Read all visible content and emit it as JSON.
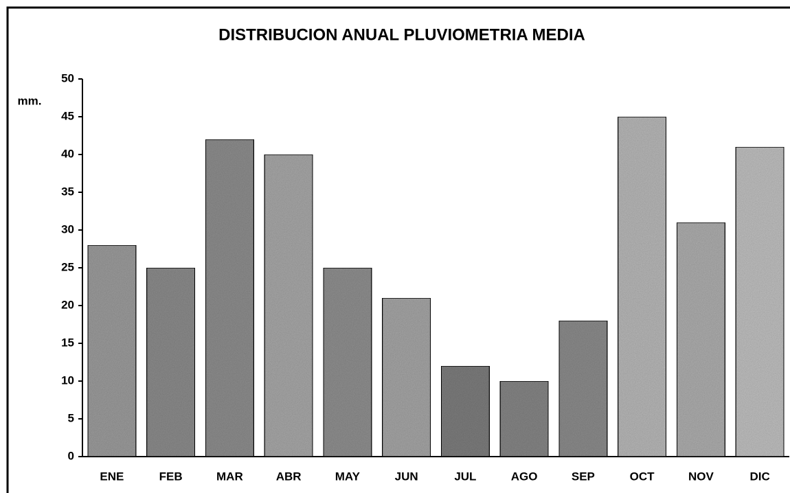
{
  "chart_data": {
    "type": "bar",
    "title": "DISTRIBUCION ANUAL PLUVIOMETRIA MEDIA",
    "y_label": "mm.",
    "categories": [
      "ENE",
      "FEB",
      "MAR",
      "ABR",
      "MAY",
      "JUN",
      "JUL",
      "AGO",
      "SEP",
      "OCT",
      "NOV",
      "DIC"
    ],
    "values": [
      28,
      25,
      42,
      40,
      25,
      21,
      12,
      10,
      18,
      45,
      31,
      41
    ],
    "colors": [
      "#9c9c9c",
      "#8c8c8c",
      "#8e8e8e",
      "#a8a8a8",
      "#909090",
      "#a6a6a6",
      "#7e7e7e",
      "#868686",
      "#8c8c8c",
      "#b8b8b8",
      "#aeaeae",
      "#c0c0c0"
    ],
    "ylim": [
      0,
      50
    ],
    "yticks": [
      0,
      5,
      10,
      15,
      20,
      25,
      30,
      35,
      40,
      45,
      50
    ],
    "grid": false
  }
}
